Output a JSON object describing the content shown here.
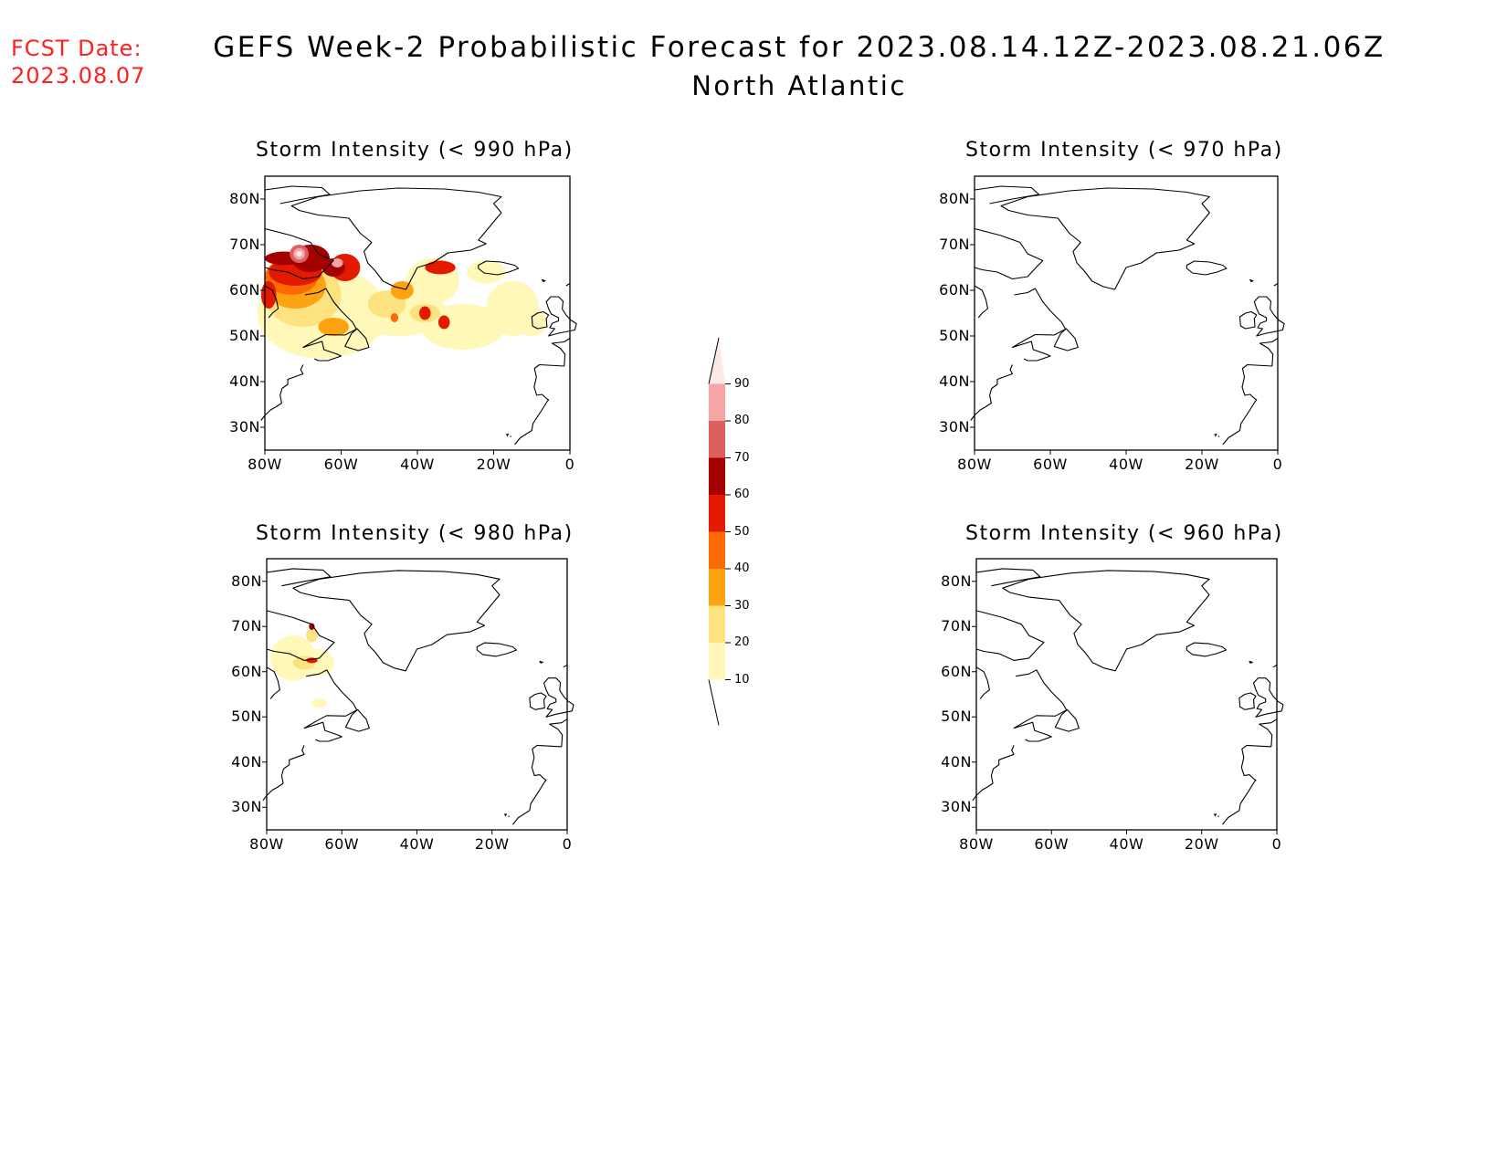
{
  "header": {
    "fcst_label": "FCST Date:",
    "fcst_date": "2023.08.07",
    "title": "GEFS Week-2 Probabilistic Forecast for 2023.08.14.12Z-2023.08.21.06Z",
    "subtitle": "North Atlantic"
  },
  "axes": {
    "lat_ticks": [
      "80N",
      "70N",
      "60N",
      "50N",
      "40N",
      "30N"
    ],
    "lon_ticks": [
      "80W",
      "60W",
      "40W",
      "20W",
      "0"
    ]
  },
  "panels": [
    {
      "id": "p990",
      "title": "Storm Intensity (< 990 hPa)",
      "signal": "strong"
    },
    {
      "id": "p970",
      "title": "Storm Intensity (< 970 hPa)",
      "signal": "none"
    },
    {
      "id": "p980",
      "title": "Storm Intensity (< 980 hPa)",
      "signal": "weak"
    },
    {
      "id": "p960",
      "title": "Storm Intensity (< 960 hPa)",
      "signal": "none"
    }
  ],
  "colorbar": {
    "levels": [
      "10",
      "20",
      "30",
      "40",
      "50",
      "60",
      "70",
      "80",
      "90"
    ],
    "colors": [
      "#fff8b8",
      "#fde380",
      "#fca311",
      "#fd6a05",
      "#e41a00",
      "#a50000",
      "#dd6060",
      "#f5a5a5",
      "#fde8e8"
    ]
  }
}
